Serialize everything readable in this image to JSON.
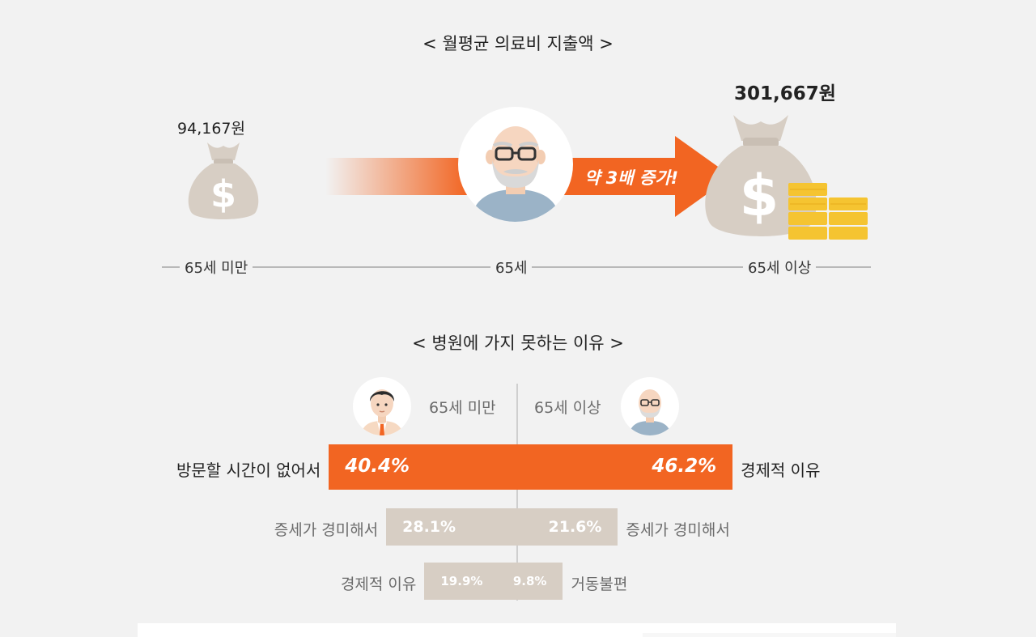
{
  "spending": {
    "title": "< 월평균 의료비 지출액 >",
    "under65_value": "94,167원",
    "over65_value": "301,667원",
    "arrow_text": "약 3배 증가!",
    "timeline": [
      "65세 미만",
      "65세",
      "65세 이상"
    ],
    "icons": [
      "money-bag-icon",
      "elderly-man-icon",
      "money-bag-coins-icon"
    ]
  },
  "reasons": {
    "title": "< 병원에 가지 못하는 이유 >",
    "left_group_label": "65세 미만",
    "right_group_label": "65세 이상"
  },
  "chart_data": {
    "type": "bar",
    "orientation": "horizontal-diverging",
    "title": "< 병원에 가지 못하는 이유 >",
    "xlim": [
      0,
      50
    ],
    "series": [
      {
        "name": "65세 미만",
        "side": "left",
        "categories": [
          "방문할 시간이 없어서",
          "증세가 경미해서",
          "경제적 이유"
        ],
        "values": [
          40.4,
          28.1,
          19.9
        ],
        "labels": [
          "40.4%",
          "28.1%",
          "19.9%"
        ]
      },
      {
        "name": "65세 이상",
        "side": "right",
        "categories": [
          "경제적 이유",
          "증세가 경미해서",
          "거동불편"
        ],
        "values": [
          46.2,
          21.6,
          9.8
        ],
        "labels": [
          "46.2%",
          "21.6%",
          "9.8%"
        ]
      }
    ],
    "colors": {
      "top": "#f26522",
      "other": "#d7cec4"
    }
  },
  "colors": {
    "background": "#f2f2f2",
    "accent": "#f26522",
    "bag": "#d7cec4",
    "coin": "#f5c431",
    "bar_secondary": "#d7cec4"
  }
}
